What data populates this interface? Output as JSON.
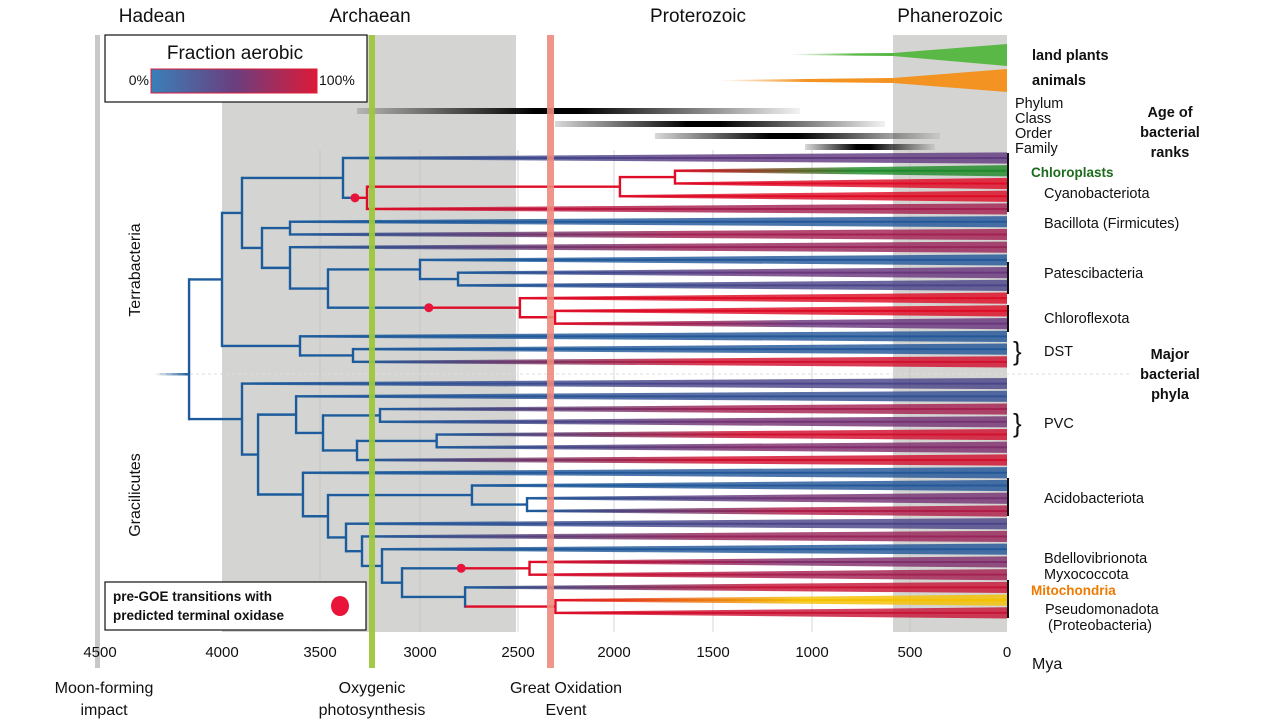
{
  "eras": [
    "Hadean",
    "Archaean",
    "Proterozoic",
    "Phanerozoic"
  ],
  "legend": {
    "title": "Fraction aerobic",
    "min_label": "0%",
    "max_label": "100%",
    "color_min": "#3a80b8",
    "color_mid": "#6a3f80",
    "color_max": "#dc1a38"
  },
  "dot_legend": {
    "line1": "pre-GOE transitions with",
    "line2": "predicted terminal oxidase",
    "dot_color": "#e8143a"
  },
  "eukaryote_groups": [
    {
      "label": "land plants",
      "color": "#5ab946"
    },
    {
      "label": "animals",
      "color": "#f39322"
    }
  ],
  "ranks": {
    "labels": [
      "Phylum",
      "Class",
      "Order",
      "Family"
    ],
    "title_lines": [
      "Age of",
      "bacterial",
      "ranks"
    ]
  },
  "major_phyla_title": [
    "Major",
    "bacterial",
    "phyla"
  ],
  "clades": {
    "terrabacteria": "Terrabacteria",
    "gracilicutes": "Gracilicutes"
  },
  "taxa": {
    "chloroplasts": {
      "label": "Chloroplasts",
      "color": "#1d6b1d"
    },
    "cyanobacteriota": "Cyanobacteriota",
    "bacillota": "Bacillota (Firmicutes)",
    "patescibacteria": "Patescibacteria",
    "chloroflexota": "Chloroflexota",
    "dst": "DST",
    "pvc": "PVC",
    "acidobacteriota": "Acidobacteriota",
    "bdellovibrionota": "Bdellovibrionota",
    "myxococcota": "Myxococcota",
    "mitochondria": {
      "label": "Mitochondria",
      "color": "#f07a00"
    },
    "pseudomonadota": "Pseudomonadota",
    "proteobacteria": "(Proteobacteria)"
  },
  "axis": {
    "ticks": [
      4500,
      4000,
      3500,
      3000,
      2500,
      2000,
      1500,
      1000,
      500,
      0
    ],
    "unit": "Mya"
  },
  "events": {
    "moon": {
      "line1": "Moon-forming",
      "line2": "impact",
      "color": "#c8c8c8"
    },
    "oxygenic": {
      "line1": "Oxygenic",
      "line2": "photosynthesis",
      "color": "#9dc73d"
    },
    "goe": {
      "line1": "Great Oxidation",
      "line2": "Event",
      "color": "#ee8a7c"
    }
  },
  "tree": {
    "age": 4135,
    "children": [
      {
        "age": 4000,
        "children": [
          {
            "age": 3898,
            "children": [
              {
                "age": 3385,
                "children": [
                  {
                    "aerobic": 0.45
                  },
                  {
                    "age": 3265,
                    "stem": 1,
                    "dot": 3325,
                    "children": [
                      {
                        "age": 1970,
                        "stem": 1,
                        "children": [
                          {
                            "age": 1692,
                            "stem": 1,
                            "children": [
                              {
                                "special": "chloroplast"
                              },
                              {
                                "aerobic": 1
                              }
                            ]
                          },
                          {
                            "aerobic": 1
                          }
                        ]
                      },
                      {
                        "aerobic": 0.75
                      }
                    ]
                  }
                ]
              },
              {
                "age": 3796,
                "children": [
                  {
                    "age": 3653,
                    "children": [
                      {
                        "aerobic": 0.05
                      },
                      {
                        "aerobic": 0.75
                      }
                    ]
                  },
                  {
                    "age": 3653,
                    "children": [
                      {
                        "aerobic": 0.7
                      },
                      {
                        "age": 3460,
                        "children": [
                          {
                            "age": 3000,
                            "children": [
                              {
                                "aerobic": 0.05
                              },
                              {
                                "age": 2806,
                                "children": [
                                  {
                                    "aerobic": 0.5
                                  },
                                  {
                                    "aerobic": 0.3
                                  }
                                ]
                              }
                            ]
                          },
                          {
                            "age": 2490,
                            "stem": 1,
                            "dot": 2955,
                            "children": [
                              {
                                "aerobic": 1
                              },
                              {
                                "age": 2307,
                                "stem": 1,
                                "children": [
                                  {
                                    "aerobic": 1
                                  },
                                  {
                                    "aerobic": 0.5
                                  }
                                ]
                              }
                            ]
                          }
                        ]
                      }
                    ]
                  }
                ]
              }
            ]
          },
          {
            "age": 3602,
            "children": [
              {
                "aerobic": 0.05
              },
              {
                "age": 3335,
                "children": [
                  {
                    "aerobic": 0.05
                  },
                  {
                    "aerobic": 0.95
                  }
                ]
              }
            ]
          }
        ]
      },
      {
        "age": 3898,
        "children": [
          {
            "aerobic": 0.3
          },
          {
            "age": 3816,
            "children": [
              {
                "age": 3622,
                "children": [
                  {
                    "aerobic": 0.15
                  },
                  {
                    "age": 3485,
                    "children": [
                      {
                        "age": 3200,
                        "children": [
                          {
                            "aerobic": 0.75
                          },
                          {
                            "aerobic": 0.55
                          }
                        ]
                      },
                      {
                        "age": 3315,
                        "children": [
                          {
                            "age": 2915,
                            "children": [
                              {
                                "aerobic": 0.95
                              },
                              {
                                "aerobic": 0.6
                              }
                            ]
                          },
                          {
                            "aerobic": 0.95
                          }
                        ]
                      }
                    ]
                  }
                ]
              },
              {
                "age": 3587,
                "children": [
                  {
                    "aerobic": 0.05
                  },
                  {
                    "age": 3460,
                    "children": [
                      {
                        "age": 2735,
                        "children": [
                          {
                            "aerobic": 0.05
                          },
                          {
                            "age": 2453,
                            "children": [
                              {
                                "aerobic": 0.55
                              },
                              {
                                "aerobic": 0.8
                              }
                            ]
                          }
                        ]
                      },
                      {
                        "age": 3370,
                        "children": [
                          {
                            "aerobic": 0.3
                          },
                          {
                            "age": 3290,
                            "children": [
                              {
                                "aerobic": 0.7
                              },
                              {
                                "age": 3190,
                                "children": [
                                  {
                                    "aerobic": 0.05
                                  },
                                  {
                                    "age": 3090,
                                    "children": [
                                      {
                                        "age": 2440,
                                        "stem": 1,
                                        "dot": 2790,
                                        "children": [
                                          {
                                            "aerobic": 0.6
                                          },
                                          {
                                            "aerobic": 0.75
                                          }
                                        ]
                                      },
                                      {
                                        "age": 2770,
                                        "children": [
                                          {
                                            "aerobic": 0.9
                                          },
                                          {
                                            "age": 2305,
                                            "stem": 1,
                                            "children": [
                                              {
                                                "special": "mitochondria"
                                              },
                                              {
                                                "aerobic": 0.9
                                              }
                                            ]
                                          }
                                        ]
                                      }
                                    ]
                                  }
                                ]
                              }
                            ]
                          }
                        ]
                      }
                    ]
                  }
                ]
              }
            ]
          }
        ]
      }
    ]
  }
}
